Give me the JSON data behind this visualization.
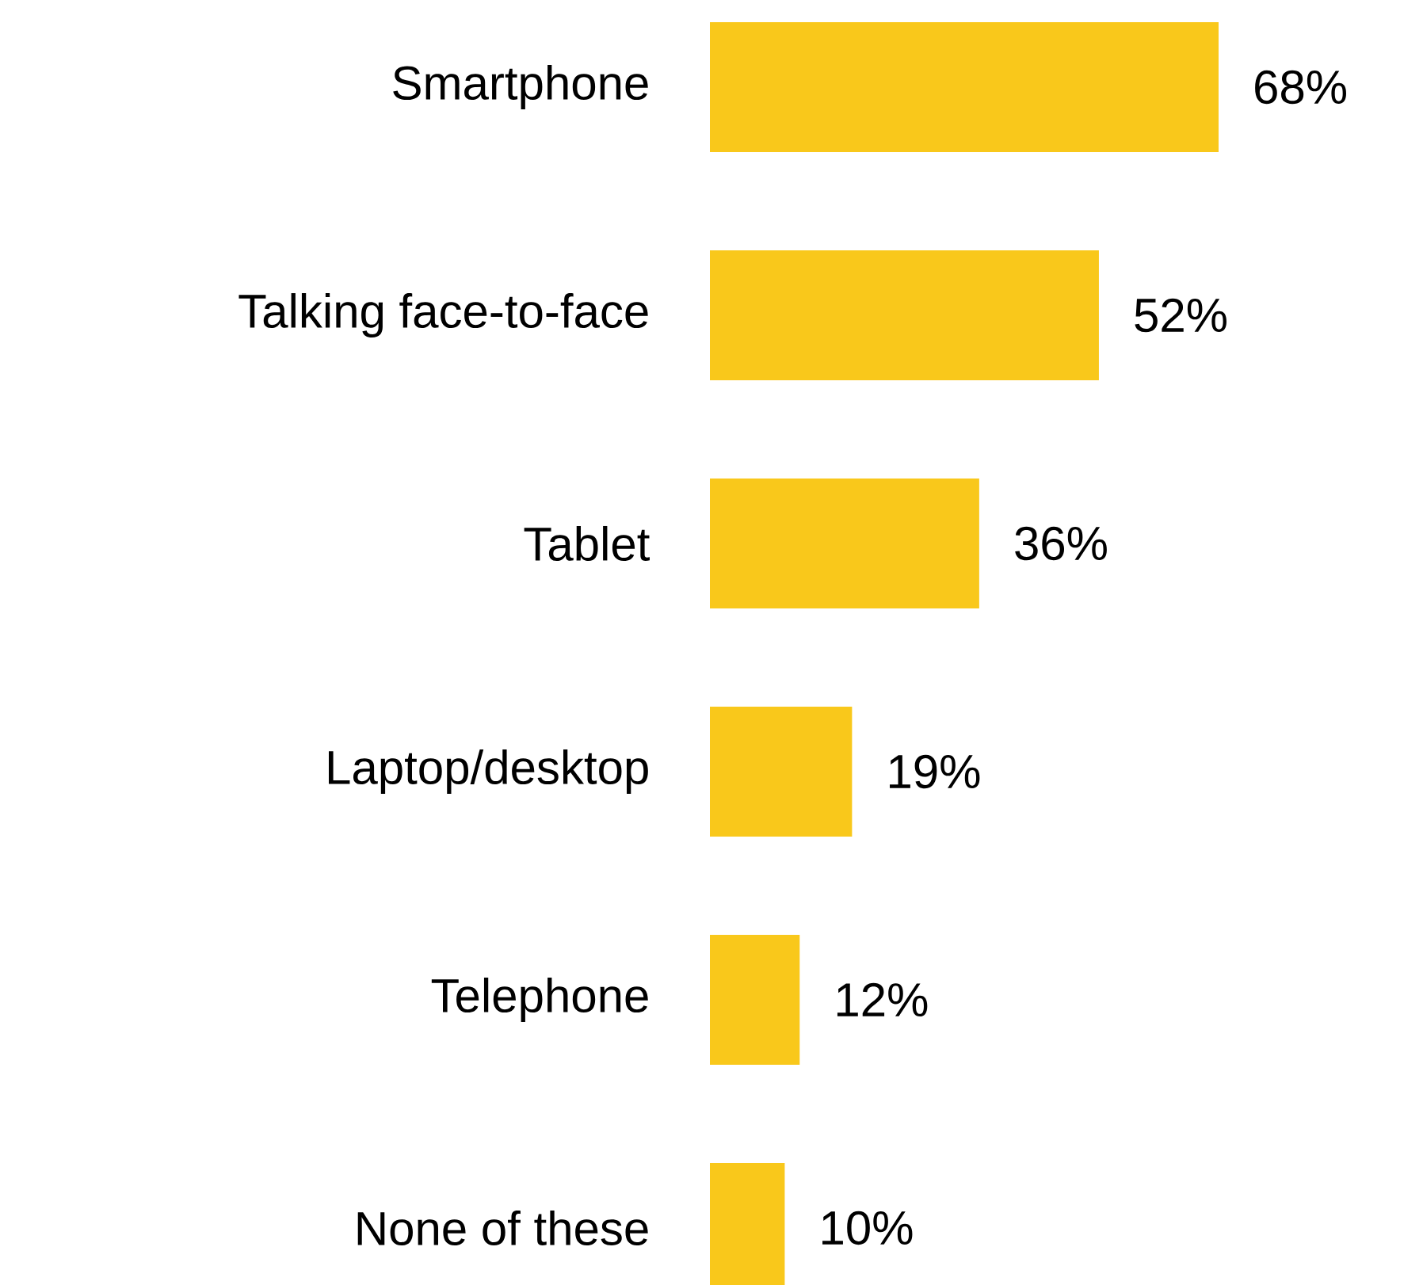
{
  "chart_data": {
    "type": "bar",
    "orientation": "horizontal",
    "categories": [
      "Smartphone",
      "Talking face-to-face",
      "Tablet",
      "Laptop/desktop",
      "Telephone",
      "None of these"
    ],
    "values": [
      68,
      52,
      36,
      19,
      12,
      10
    ],
    "value_labels": [
      "68%",
      "52%",
      "36%",
      "19%",
      "12%",
      "10%"
    ],
    "color": "#f9c81b"
  }
}
